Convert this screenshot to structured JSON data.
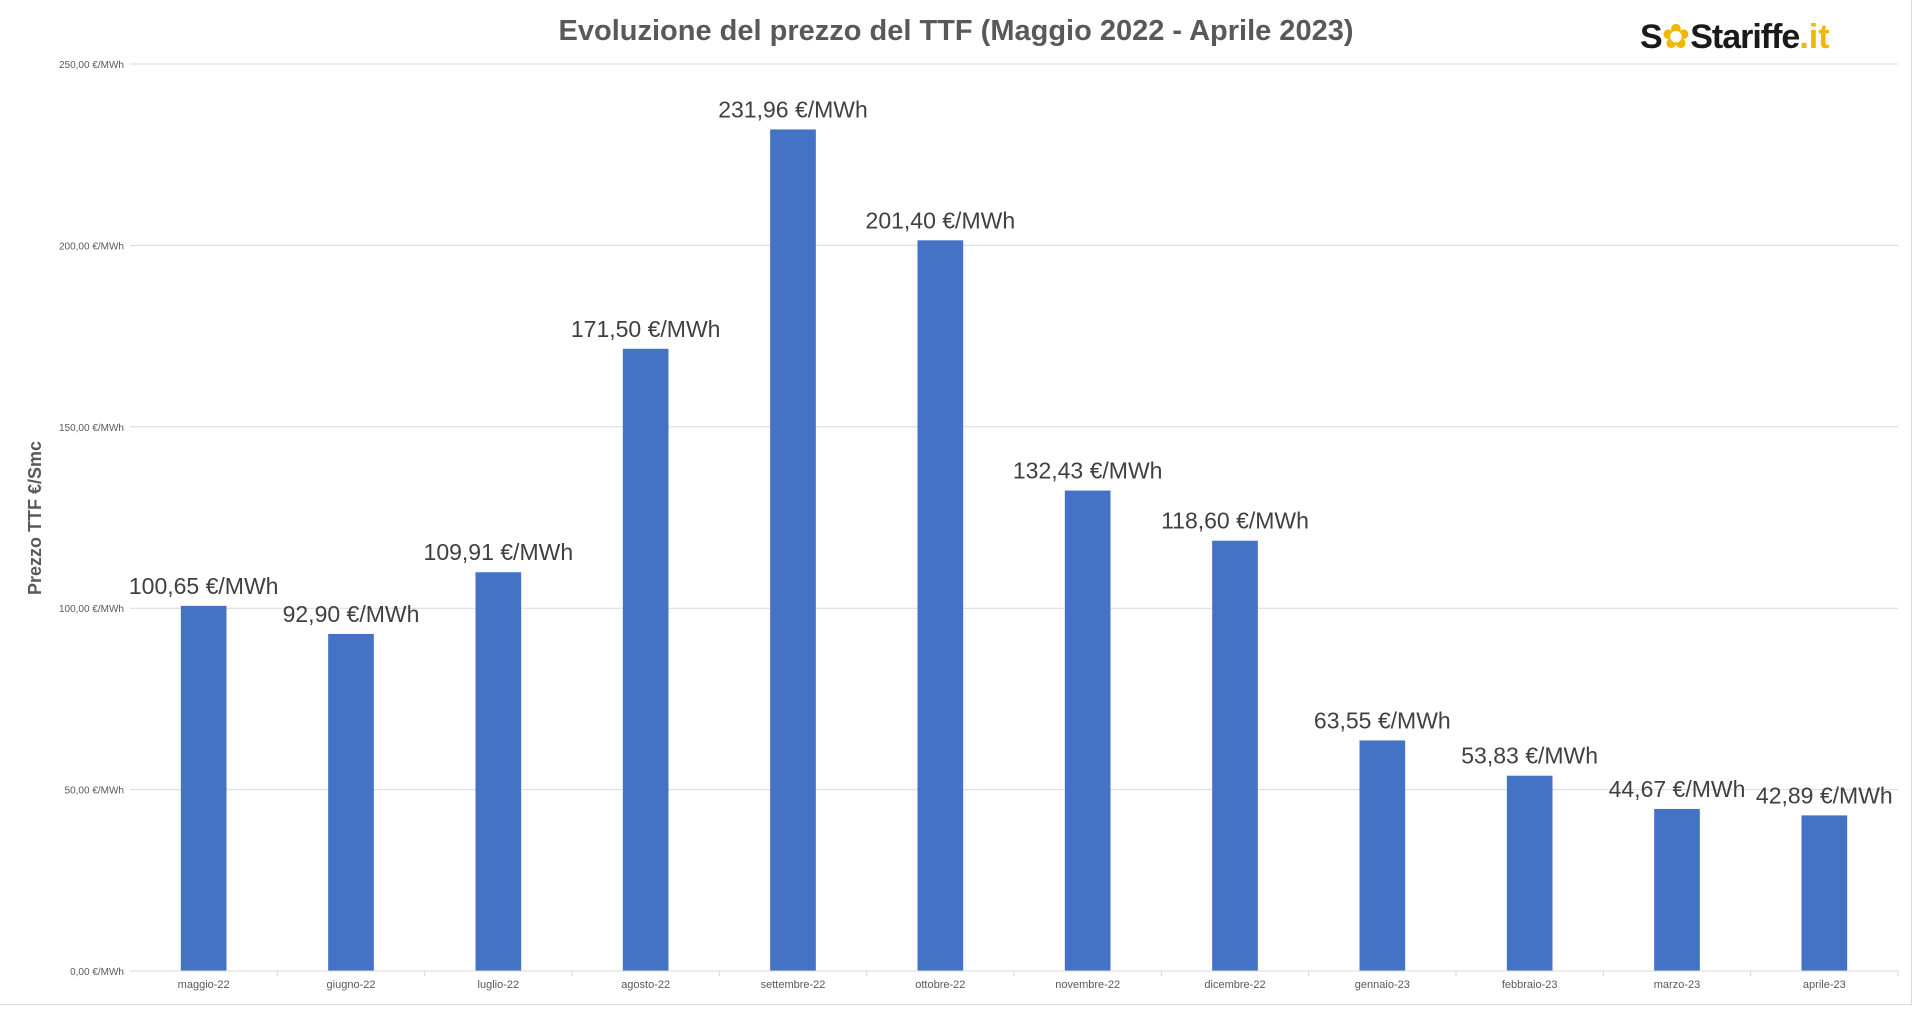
{
  "chart_data": {
    "type": "bar",
    "title": "Evoluzione del prezzo del TTF (Maggio 2022 - Aprile 2023)",
    "xlabel": "",
    "ylabel": "Prezzo TTF €/Smc",
    "ylim": [
      0,
      250
    ],
    "yticks": [
      0,
      50,
      100,
      150,
      200,
      250
    ],
    "ytick_labels": [
      "0,00 €/MWh",
      "50,00 €/MWh",
      "100,00 €/MWh",
      "150,00 €/MWh",
      "200,00 €/MWh",
      "250,00 €/MWh"
    ],
    "grid": true,
    "categories": [
      "maggio-22",
      "giugno-22",
      "luglio-22",
      "agosto-22",
      "settembre-22",
      "ottobre-22",
      "novembre-22",
      "dicembre-22",
      "gennaio-23",
      "febbraio-23",
      "marzo-23",
      "aprile-23"
    ],
    "values": [
      100.65,
      92.9,
      109.91,
      171.5,
      231.96,
      201.4,
      132.43,
      118.6,
      63.55,
      53.83,
      44.67,
      42.89
    ],
    "data_labels": [
      "100,65 €/MWh",
      "92,90 €/MWh",
      "109,91 €/MWh",
      "171,50 €/MWh",
      "231,96 €/MWh",
      "201,40 €/MWh",
      "132,43 €/MWh",
      "118,60 €/MWh",
      "63,55 €/MWh",
      "53,83 €/MWh",
      "44,67 €/MWh",
      "42,89 €/MWh"
    ],
    "bar_color": "#4472c4"
  },
  "logo": {
    "part1": "S",
    "part2": "S",
    "part3": "tariffe",
    "part4": ".it",
    "dark_color": "#1a1a1a",
    "accent_color": "#f2b705"
  }
}
